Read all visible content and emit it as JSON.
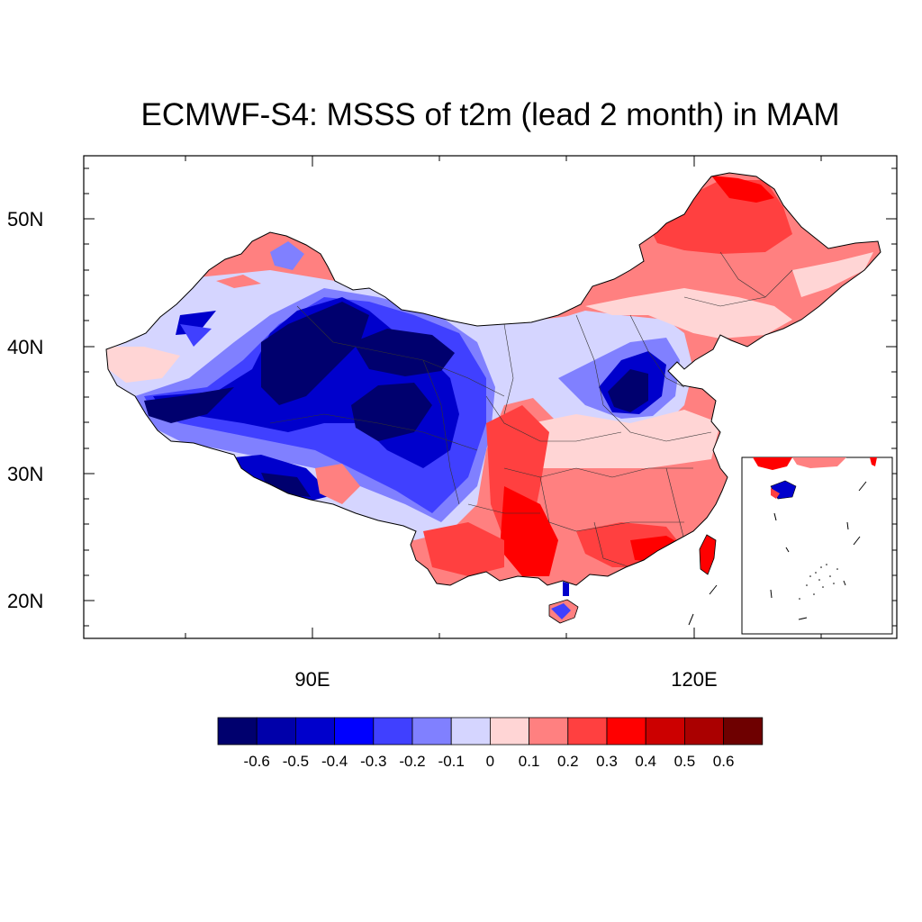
{
  "title": "ECMWF-S4: MSSS of t2m (lead 2 month) in MAM",
  "axes": {
    "lat_labels": [
      "50N",
      "40N",
      "30N",
      "20N"
    ],
    "lon_labels": [
      "90E",
      "120E"
    ]
  },
  "colorbar": {
    "labels": [
      "-0.6",
      "-0.5",
      "-0.4",
      "-0.3",
      "-0.2",
      "-0.1",
      "0",
      "0.1",
      "0.2",
      "0.3",
      "0.4",
      "0.5",
      "0.6"
    ],
    "colors": [
      "#00006e",
      "#0000aa",
      "#0000cc",
      "#0000ff",
      "#4040ff",
      "#8080ff",
      "#d5d5ff",
      "#ffd5d5",
      "#ff8080",
      "#ff4040",
      "#ff0000",
      "#cc0000",
      "#aa0000",
      "#6e0000"
    ]
  },
  "colors": {
    "deep_blue": "#00006e",
    "blue": "#0000cc",
    "mid_blue": "#4040ff",
    "light_blue": "#8080ff",
    "pale_blue": "#d5d5ff",
    "pale_red": "#ffd5d5",
    "light_red": "#ff8080",
    "mid_red": "#ff4040",
    "red": "#ff0000"
  }
}
